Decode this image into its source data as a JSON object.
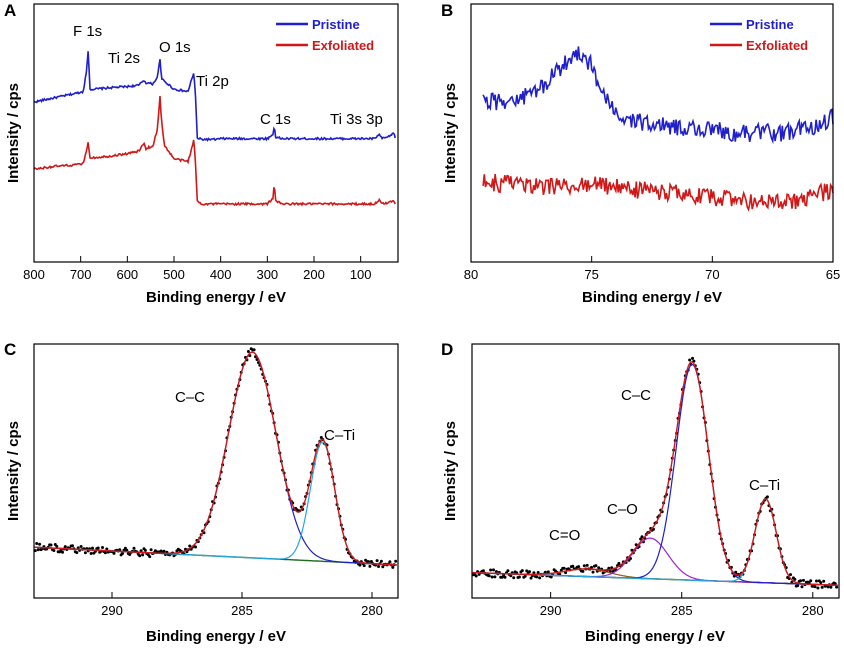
{
  "chart_data": [
    {
      "id": "A",
      "type": "line",
      "panel_label": "A",
      "title": "",
      "xlabel": "Binding energy / eV",
      "ylabel": "Intensity / cps",
      "xlim": [
        800,
        20
      ],
      "ylim": [
        0,
        1
      ],
      "x_reversed": true,
      "x_ticks": [
        800,
        700,
        600,
        500,
        400,
        300,
        200,
        100
      ],
      "y_ticks_shown": false,
      "legend": {
        "position": "top-right",
        "entries": [
          {
            "name": "Pristine",
            "color": "#1f1fcc"
          },
          {
            "name": "Exfoliated",
            "color": "#d01818"
          }
        ]
      },
      "series": [
        {
          "name": "Pristine",
          "color": "#1f1fcc",
          "x": [
            800,
            760,
            720,
            695,
            688,
            684,
            680,
            670,
            640,
            600,
            575,
            565,
            560,
            545,
            535,
            530,
            527,
            520,
            500,
            470,
            462,
            458,
            455,
            450,
            440,
            410,
            400,
            380,
            330,
            300,
            287,
            285,
            283,
            270,
            200,
            150,
            100,
            70,
            60,
            55,
            40,
            30,
            25
          ],
          "y": [
            0.62,
            0.635,
            0.65,
            0.66,
            0.73,
            0.82,
            0.67,
            0.67,
            0.675,
            0.68,
            0.685,
            0.705,
            0.695,
            0.69,
            0.72,
            0.79,
            0.71,
            0.7,
            0.67,
            0.66,
            0.71,
            0.73,
            0.68,
            0.48,
            0.475,
            0.475,
            0.478,
            0.478,
            0.478,
            0.478,
            0.495,
            0.54,
            0.485,
            0.478,
            0.478,
            0.478,
            0.478,
            0.478,
            0.495,
            0.478,
            0.485,
            0.5,
            0.48
          ]
        },
        {
          "name": "Exfoliated",
          "color": "#d01818",
          "x": [
            800,
            760,
            720,
            695,
            688,
            684,
            680,
            670,
            640,
            600,
            575,
            565,
            560,
            545,
            535,
            532,
            530,
            527,
            520,
            500,
            470,
            462,
            458,
            455,
            450,
            440,
            410,
            380,
            330,
            300,
            287,
            285,
            283,
            270,
            200,
            150,
            100,
            70,
            60,
            55,
            40,
            30,
            25
          ],
          "y": [
            0.36,
            0.37,
            0.375,
            0.38,
            0.43,
            0.46,
            0.405,
            0.405,
            0.41,
            0.42,
            0.43,
            0.46,
            0.44,
            0.45,
            0.52,
            0.6,
            0.64,
            0.55,
            0.45,
            0.4,
            0.39,
            0.44,
            0.47,
            0.42,
            0.235,
            0.225,
            0.225,
            0.225,
            0.225,
            0.225,
            0.25,
            0.32,
            0.24,
            0.225,
            0.225,
            0.225,
            0.225,
            0.225,
            0.24,
            0.225,
            0.23,
            0.24,
            0.225
          ]
        }
      ],
      "annotations": [
        {
          "text": "F 1s",
          "x": 700,
          "y": 0.88
        },
        {
          "text": "Ti 2s",
          "x": 590,
          "y": 0.8
        },
        {
          "text": "O 1s",
          "x": 505,
          "y": 0.84
        },
        {
          "text": "Ti 2p",
          "x": 440,
          "y": 0.74
        },
        {
          "text": "C 1s",
          "x": 290,
          "y": 0.58
        },
        {
          "text": "Ti 3s 3p",
          "x": 100,
          "y": 0.58
        }
      ]
    },
    {
      "id": "B",
      "type": "line",
      "panel_label": "B",
      "title": "",
      "xlabel": "Binding energy / eV",
      "ylabel": "Intensity / cps",
      "xlim": [
        80,
        65
      ],
      "ylim": [
        0,
        1
      ],
      "x_reversed": true,
      "x_ticks": [
        80,
        75,
        70,
        65
      ],
      "y_ticks_shown": false,
      "legend": {
        "position": "top-right",
        "entries": [
          {
            "name": "Pristine",
            "color": "#1f1fcc"
          },
          {
            "name": "Exfoliated",
            "color": "#d01818"
          }
        ]
      },
      "series": [
        {
          "name": "Pristine",
          "color": "#1f1fcc",
          "x": [
            79.5,
            78,
            77,
            76.5,
            76,
            75.5,
            75,
            74.5,
            74,
            73,
            72,
            71,
            70,
            69,
            68,
            67,
            66,
            65
          ],
          "y": [
            0.62,
            0.63,
            0.68,
            0.73,
            0.78,
            0.82,
            0.76,
            0.64,
            0.57,
            0.54,
            0.53,
            0.52,
            0.51,
            0.5,
            0.5,
            0.5,
            0.52,
            0.56
          ]
        },
        {
          "name": "Exfoliated",
          "color": "#d01818",
          "x": [
            79.5,
            78,
            77,
            76,
            75,
            74,
            73,
            72,
            71,
            70,
            69,
            68,
            67,
            66,
            65
          ],
          "y": [
            0.31,
            0.3,
            0.29,
            0.29,
            0.3,
            0.29,
            0.28,
            0.27,
            0.26,
            0.25,
            0.24,
            0.23,
            0.23,
            0.25,
            0.28
          ]
        }
      ]
    },
    {
      "id": "C",
      "type": "line",
      "panel_label": "C",
      "title": "",
      "xlabel": "Binding energy / eV",
      "ylabel": "Intensity / cps",
      "xlim": [
        293,
        279
      ],
      "ylim": [
        0,
        1
      ],
      "x_reversed": true,
      "x_ticks": [
        290,
        285,
        280
      ],
      "y_ticks_shown": false,
      "background": {
        "color": "#1d6a1d",
        "x": [
          293,
          279
        ],
        "y": [
          0.2,
          0.13
        ]
      },
      "components": [
        {
          "name": "C–C",
          "color": "#1f1fcc",
          "center": 284.6,
          "height": 0.81,
          "fwhm": 2.15
        },
        {
          "name": "C–Ti",
          "color": "#25a8e0",
          "center": 281.9,
          "height": 0.47,
          "fwhm": 1.1
        }
      ],
      "envelope_color": "#d01818",
      "data_points_color": "#000000",
      "annotations": [
        {
          "text": "C–C",
          "x": 285.7,
          "y": 1.1
        },
        {
          "text": "C–Ti",
          "x": 282.0,
          "y": 0.76
        }
      ]
    },
    {
      "id": "D",
      "type": "line",
      "panel_label": "D",
      "title": "",
      "xlabel": "Binding energy / eV",
      "ylabel": "Intensity / cps",
      "xlim": [
        293,
        279
      ],
      "ylim": [
        0,
        1
      ],
      "x_reversed": true,
      "x_ticks": [
        290,
        285,
        280
      ],
      "y_ticks_shown": false,
      "background": {
        "color": "#1d6a1d",
        "x": [
          293,
          279
        ],
        "y": [
          0.1,
          0.05
        ]
      },
      "components": [
        {
          "name": "C=O",
          "color": "#8a5a20",
          "center": 288.6,
          "height": 0.03,
          "fwhm": 2.0
        },
        {
          "name": "C–O",
          "color": "#a020d8",
          "center": 286.2,
          "height": 0.16,
          "fwhm": 1.6
        },
        {
          "name": "C–C",
          "color": "#1f1fcc",
          "center": 284.6,
          "height": 0.85,
          "fwhm": 1.45
        },
        {
          "name": "C–Ti",
          "color": "#25a8e0",
          "center": 281.8,
          "height": 0.33,
          "fwhm": 0.95
        }
      ],
      "envelope_color": "#d01818",
      "data_points_color": "#000000",
      "annotations": [
        {
          "text": "C=O",
          "x": 288.4,
          "y": 0.32
        },
        {
          "text": "C–O",
          "x": 286.8,
          "y": 0.5
        },
        {
          "text": "C–C",
          "x": 285.3,
          "y": 1.0
        },
        {
          "text": "C–Ti",
          "x": 281.7,
          "y": 0.58
        }
      ]
    }
  ]
}
